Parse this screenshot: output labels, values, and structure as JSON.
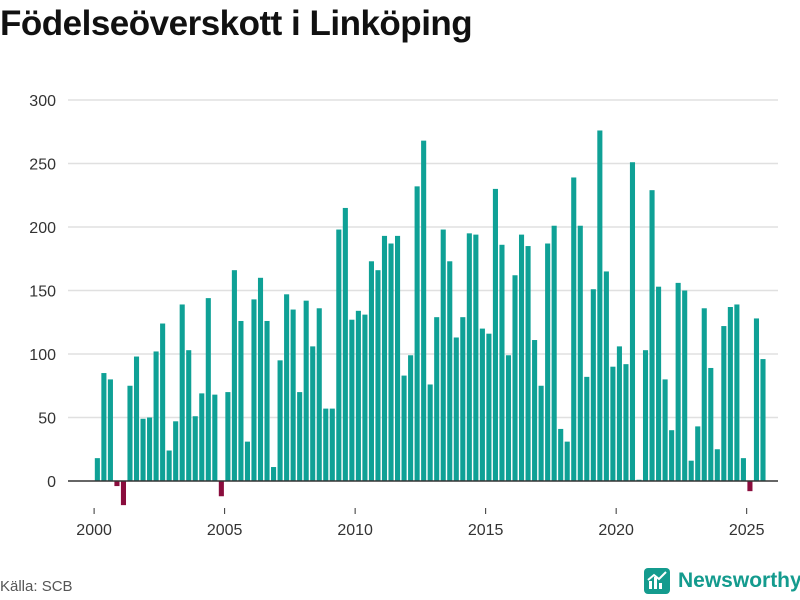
{
  "title": "Födelseöverskott i Linköping",
  "source": "Källa: SCB",
  "brand": "Newsworthy",
  "colors": {
    "positive": "#0fa196",
    "negative": "#8a0d3d",
    "grid": "#e0e0e0",
    "zero": "#333333",
    "brand": "#149b8e"
  },
  "chart_data": {
    "type": "bar",
    "title": "Födelseöverskott i Linköping",
    "xlabel": "",
    "ylabel": "",
    "ylim": [
      -20,
      300
    ],
    "yticks": [
      0,
      50,
      100,
      150,
      200,
      250,
      300
    ],
    "xticks": [
      2000,
      2005,
      2010,
      2015,
      2020,
      2025
    ],
    "xlim": [
      1999.0,
      2026.2
    ],
    "grid": true,
    "frequency": "quarterly",
    "series": [
      {
        "name": "",
        "x_start": "2000-Q1",
        "values": [
          18,
          85,
          80,
          -4,
          -19,
          75,
          98,
          49,
          50,
          102,
          124,
          24,
          47,
          139,
          103,
          51,
          69,
          144,
          68,
          -12,
          70,
          166,
          126,
          31,
          143,
          160,
          126,
          11,
          95,
          147,
          135,
          70,
          142,
          106,
          136,
          57,
          57,
          198,
          215,
          127,
          134,
          131,
          173,
          166,
          193,
          187,
          193,
          83,
          99,
          232,
          268,
          76,
          129,
          198,
          173,
          113,
          129,
          195,
          194,
          120,
          116,
          230,
          186,
          99,
          162,
          194,
          185,
          111,
          75,
          187,
          201,
          41,
          31,
          239,
          201,
          82,
          151,
          276,
          165,
          90,
          106,
          92,
          251,
          1,
          103,
          229,
          153,
          80,
          40,
          156,
          150,
          16,
          43,
          136,
          89,
          25,
          122,
          137,
          139,
          18,
          -8,
          128,
          96
        ]
      }
    ]
  }
}
